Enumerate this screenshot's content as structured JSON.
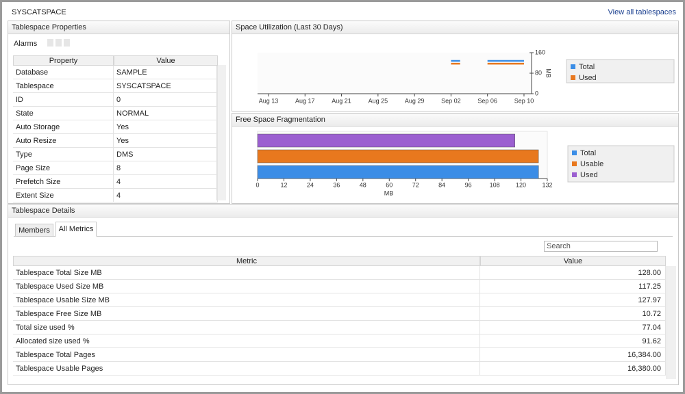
{
  "header": {
    "title": "SYSCATSPACE",
    "link": "View all tablespaces"
  },
  "properties": {
    "title": "Tablespace Properties",
    "alarms": "Alarms",
    "columns": [
      "Property",
      "Value"
    ],
    "rows": [
      [
        "Database",
        "SAMPLE"
      ],
      [
        "Tablespace",
        "SYSCATSPACE"
      ],
      [
        "ID",
        "0"
      ],
      [
        "State",
        "NORMAL"
      ],
      [
        "Auto Storage",
        "Yes"
      ],
      [
        "Auto Resize",
        "Yes"
      ],
      [
        "Type",
        "DMS"
      ],
      [
        "Page Size",
        "8"
      ],
      [
        "Prefetch Size",
        "4"
      ],
      [
        "Extent Size",
        "4"
      ]
    ]
  },
  "utilization": {
    "title": "Space Utilization (Last 30 Days)",
    "chart_data": {
      "type": "line",
      "categories": [
        "Aug 13",
        null,
        null,
        null,
        "Aug 17",
        null,
        null,
        null,
        "Aug 21",
        null,
        null,
        null,
        "Aug 25",
        null,
        null,
        null,
        "Aug 29",
        null,
        null,
        null,
        "Sep 02",
        null,
        null,
        null,
        "Sep 06",
        null,
        null,
        null,
        "Sep 10"
      ],
      "series": [
        {
          "name": "Total",
          "color": "#3b8de6",
          "values": [
            null,
            null,
            null,
            null,
            null,
            null,
            null,
            null,
            null,
            null,
            null,
            null,
            null,
            null,
            null,
            null,
            null,
            null,
            null,
            null,
            128,
            128,
            null,
            null,
            128,
            128,
            128,
            128,
            128
          ]
        },
        {
          "name": "Used",
          "color": "#e8781e",
          "values": [
            null,
            null,
            null,
            null,
            null,
            null,
            null,
            null,
            null,
            null,
            null,
            null,
            null,
            null,
            null,
            null,
            null,
            null,
            null,
            null,
            117,
            117,
            null,
            null,
            117,
            117,
            117,
            117,
            117
          ]
        }
      ],
      "ylabel": "MB",
      "ylim": [
        0,
        160
      ],
      "yticks": [
        0,
        80,
        160
      ]
    }
  },
  "fragmentation": {
    "title": "Free Space Fragmentation",
    "chart_data": {
      "type": "hbar",
      "series": [
        {
          "name": "Total",
          "color": "#3b8de6",
          "values": [
            128
          ]
        },
        {
          "name": "Usable",
          "color": "#e8781e",
          "values": [
            127.97
          ]
        },
        {
          "name": "Used",
          "color": "#9b5fd0",
          "values": [
            117.25
          ]
        }
      ],
      "xlabel": "MB",
      "xlim": [
        0,
        132
      ],
      "xticks": [
        0,
        12,
        24,
        36,
        48,
        60,
        72,
        84,
        96,
        108,
        120,
        132
      ]
    }
  },
  "details": {
    "title": "Tablespace Details",
    "tabs": [
      "Members",
      "All Metrics"
    ],
    "search": "Search",
    "columns": [
      "Metric",
      "Value"
    ],
    "rows": [
      [
        "Tablespace Total Size MB",
        "128.00"
      ],
      [
        "Tablespace Used Size MB",
        "117.25"
      ],
      [
        "Tablespace Usable Size MB",
        "127.97"
      ],
      [
        "Tablespace Free Size MB",
        "10.72"
      ],
      [
        "Total size used %",
        "77.04"
      ],
      [
        "Allocated size used %",
        "91.62"
      ],
      [
        "Tablespace Total Pages",
        "16,384.00"
      ],
      [
        "Tablespace Usable Pages",
        "16,380.00"
      ]
    ]
  }
}
